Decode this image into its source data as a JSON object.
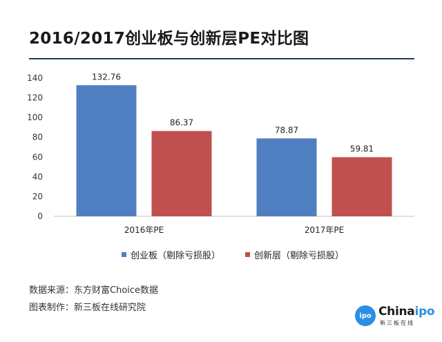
{
  "chart_data": {
    "type": "bar",
    "title": "2016/2017创业板与创新层PE对比图",
    "categories": [
      "2016年PE",
      "2017年PE"
    ],
    "series": [
      {
        "name": "创业板（剔除亏损股）",
        "values": [
          132.76,
          78.87
        ],
        "color": "#4f7fc0"
      },
      {
        "name": "创新层（剔除亏损股）",
        "values": [
          86.37,
          59.81
        ],
        "color": "#c0504d"
      }
    ],
    "ylim": [
      0,
      140
    ],
    "yticks": [
      "0",
      "20",
      "40",
      "60",
      "80",
      "100",
      "120",
      "140"
    ],
    "data_labels": [
      [
        "132.76",
        "78.87"
      ],
      [
        "86.37",
        "59.81"
      ]
    ],
    "grid": false,
    "legend_position": "bottom"
  },
  "footer": {
    "source": "数据来源：东方财富Choice数据",
    "credit": "图表制作：新三板在线研究院"
  },
  "logo": {
    "word_dark": "China",
    "word_blue": "ipo",
    "circle_text": "ipo",
    "sub": "新三板在线"
  }
}
